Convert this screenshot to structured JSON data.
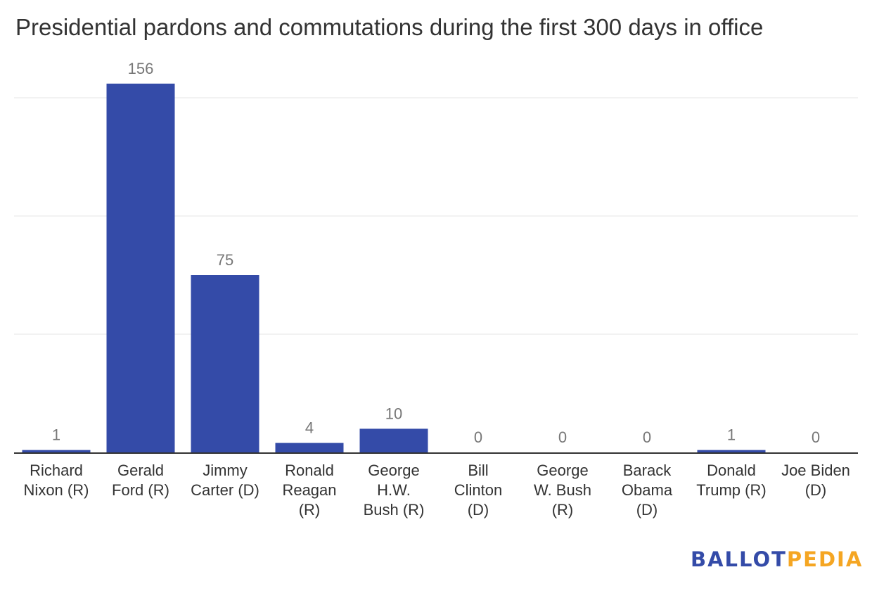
{
  "chart_data": {
    "type": "bar",
    "title": "Presidential pardons and commutations during the first 300 days in office",
    "categories": [
      [
        "Richard",
        "Nixon (R)"
      ],
      [
        "Gerald",
        "Ford (R)"
      ],
      [
        "Jimmy",
        "Carter (D)"
      ],
      [
        "Ronald",
        "Reagan",
        "(R)"
      ],
      [
        "George",
        "H.W.",
        "Bush (R)"
      ],
      [
        "Bill",
        "Clinton",
        "(D)"
      ],
      [
        "George",
        "W. Bush",
        "(R)"
      ],
      [
        "Barack",
        "Obama",
        "(D)"
      ],
      [
        "Donald",
        "Trump (R)"
      ],
      [
        "Joe Biden",
        "(D)"
      ]
    ],
    "values": [
      1,
      156,
      75,
      4,
      10,
      0,
      0,
      0,
      1,
      0
    ],
    "xlabel": "",
    "ylabel": "",
    "ylim": [
      0,
      150
    ],
    "gridlines": [
      50,
      100,
      150
    ],
    "grid": true,
    "bar_color": "#344ba8"
  },
  "logo": {
    "part1": "BALLOT",
    "part2": "PEDIA",
    "color1": "#344ba8",
    "color2": "#f5a623"
  }
}
